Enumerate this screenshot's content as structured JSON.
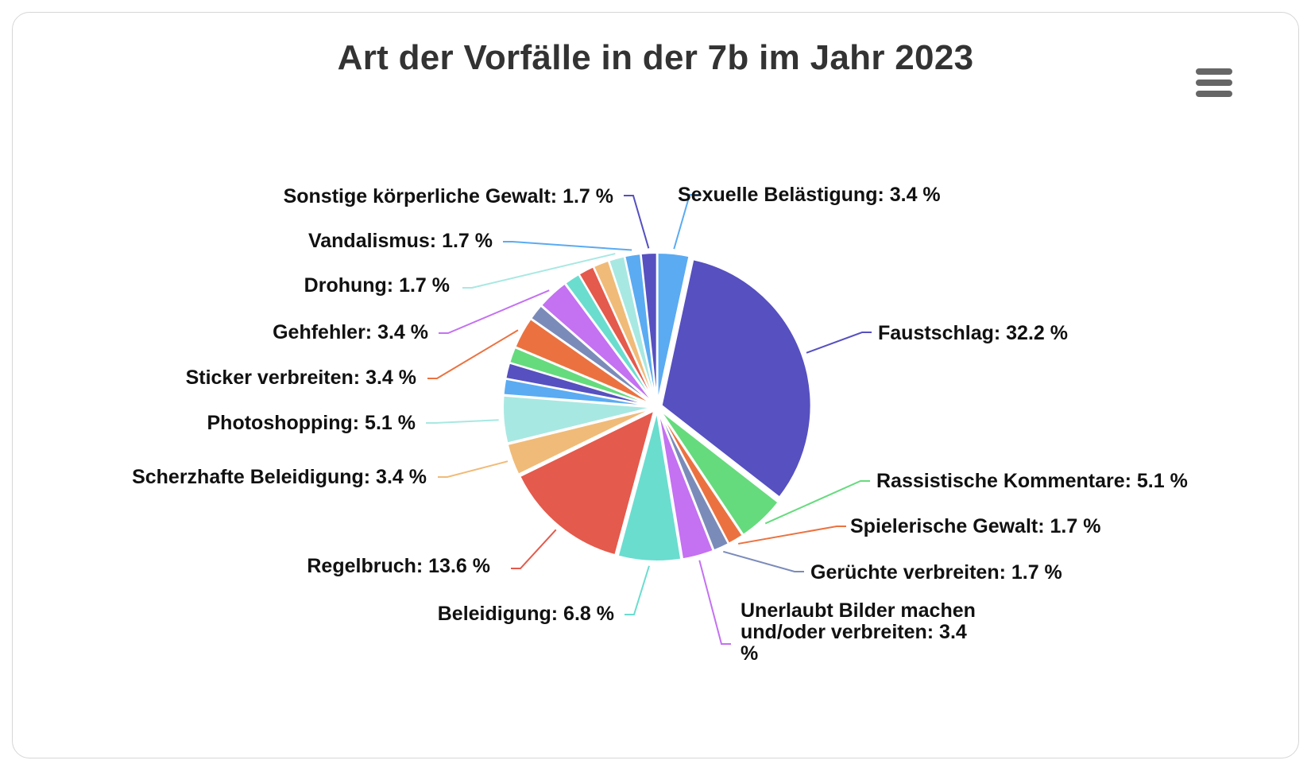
{
  "chart_data": {
    "type": "pie",
    "title": "Art der Vorfälle in der 7b im Jahr 2023",
    "slices": [
      {
        "label": "Sexuelle Belästigung",
        "value": 3.4,
        "color": "#5AABF2"
      },
      {
        "label": "Faustschlag",
        "value": 32.2,
        "color": "#5650C0"
      },
      {
        "label": "Rassistische Kommentare",
        "value": 5.1,
        "color": "#65DB7D"
      },
      {
        "label": "Spielerische Gewalt",
        "value": 1.7,
        "color": "#EB7240"
      },
      {
        "label": "Gerüchte verbreiten",
        "value": 1.7,
        "color": "#7B8BB9"
      },
      {
        "label": "Unerlaubt Bilder machen und/oder verbreiten",
        "value": 3.4,
        "color": "#C471F2"
      },
      {
        "label": "Beleidigung",
        "value": 6.8,
        "color": "#6ADDCF"
      },
      {
        "label": "Regelbruch",
        "value": 13.6,
        "color": "#E45A4C"
      },
      {
        "label": "Scherzhafte Beleidigung",
        "value": 3.4,
        "color": "#F0BB78"
      },
      {
        "label": "Photoshopping",
        "value": 5.1,
        "color": "#A8E8E2"
      },
      {
        "label": "",
        "value": 1.7,
        "color": "#5AABF2"
      },
      {
        "label": "",
        "value": 1.7,
        "color": "#5650C0"
      },
      {
        "label": "",
        "value": 1.7,
        "color": "#65DB7D"
      },
      {
        "label": "Sticker verbreiten",
        "value": 3.4,
        "color": "#EB7240"
      },
      {
        "label": "",
        "value": 1.7,
        "color": "#7B8BB9"
      },
      {
        "label": "Gehfehler",
        "value": 3.4,
        "color": "#C471F2"
      },
      {
        "label": "",
        "value": 1.7,
        "color": "#6ADDCF"
      },
      {
        "label": "",
        "value": 1.7,
        "color": "#E45A4C"
      },
      {
        "label": "",
        "value": 1.7,
        "color": "#F0BB78"
      },
      {
        "label": "Drohung",
        "value": 1.7,
        "color": "#A8E8E2"
      },
      {
        "label": "Vandalismus",
        "value": 1.7,
        "color": "#5AABF2"
      },
      {
        "label": "Sonstige körperliche Gewalt",
        "value": 1.7,
        "color": "#5650C0"
      }
    ]
  }
}
